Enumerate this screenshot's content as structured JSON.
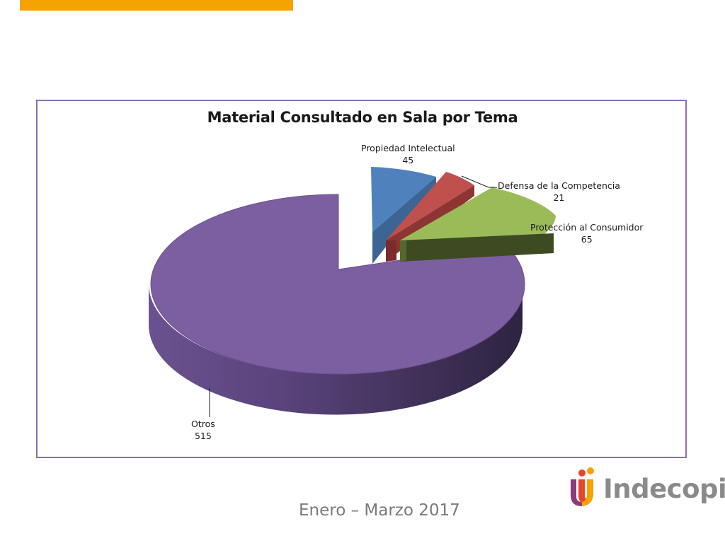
{
  "slide": {
    "footer": "Enero – Marzo 2017",
    "logo_text": "Indecopi",
    "accent": "#f5a300"
  },
  "chart_data": {
    "type": "pie",
    "title": "Material Consultado en Sala por Tema",
    "three_d": true,
    "exploded": true,
    "series": [
      {
        "name": "Propiedad Intelectual",
        "value": 45,
        "color": "#4f81bd"
      },
      {
        "name": "Defensa de la Competencia",
        "value": 21,
        "color": "#c0504d"
      },
      {
        "name": "Protección al Consumidor",
        "value": 65,
        "color": "#9bbb59"
      },
      {
        "name": "Otros",
        "value": 515,
        "color": "#7b5fa0"
      }
    ]
  }
}
